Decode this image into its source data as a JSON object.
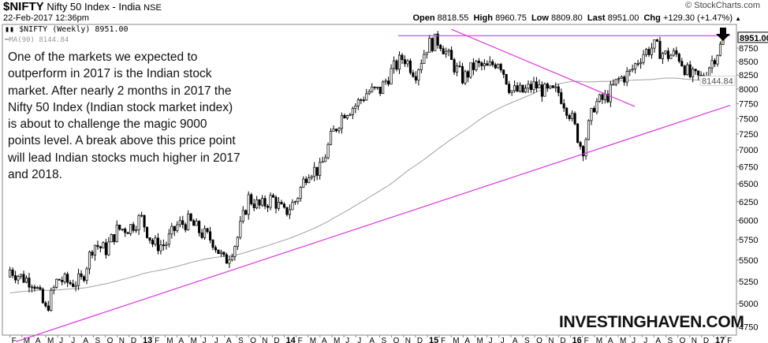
{
  "header": {
    "symbol": "$NIFTY",
    "name": "Nifty 50 Index - India",
    "exchange": "NSE",
    "datetime": "22-Feb-2017 12:36pm",
    "copyright": "© StockCharts.com",
    "open_label": "Open",
    "open": "8818.55",
    "high_label": "High",
    "high": "8960.75",
    "low_label": "Low",
    "low": "8809.80",
    "last_label": "Last",
    "last": "8951.00",
    "chg_label": "Chg",
    "chg": "+129.30 (+1.47%)"
  },
  "legend": {
    "series": "$NIFTY (Weekly) 8951.00",
    "ma": "MA(90) 8144.84"
  },
  "annotation": "One of the markets we expected to outperform in 2017 is the Indian stock market. After nearly 2 months in 2017 the Nifty 50 Index (Indian stock market index) is about to challenge the magic 9000 points level. A break above this price point will lead Indian stocks much higher in 2017 and 2018.",
  "watermark": "INVESTINGHAVEN.COM",
  "colors": {
    "trendline": "#e033e0",
    "ma": "#a0a0a0",
    "candle": "#000000",
    "last_candle": "#f5f0a0"
  },
  "chart_data": {
    "type": "candlestick",
    "title": "$NIFTY Nifty 50 Index - India NSE (Weekly)",
    "scale": "log",
    "ylim": [
      4650,
      9150
    ],
    "y_ticks": [
      4750,
      5000,
      5250,
      5500,
      5750,
      6000,
      6250,
      6500,
      6750,
      7000,
      7250,
      7500,
      7750,
      8000,
      8250,
      8500,
      8750
    ],
    "last_price_label": "8951.00",
    "ma_label": "8144.84",
    "x_labels": [
      "F",
      "M",
      "A",
      "M",
      "J",
      "J",
      "A",
      "S",
      "O",
      "N",
      "D",
      "13",
      "F",
      "M",
      "A",
      "M",
      "J",
      "J",
      "A",
      "S",
      "O",
      "N",
      "D",
      "14",
      "F",
      "M",
      "A",
      "M",
      "J",
      "J",
      "A",
      "S",
      "O",
      "N",
      "D",
      "15",
      "F",
      "M",
      "A",
      "M",
      "J",
      "J",
      "A",
      "S",
      "O",
      "N",
      "D",
      "16",
      "F",
      "M",
      "A",
      "M",
      "J",
      "J",
      "A",
      "S",
      "O",
      "N",
      "D",
      "17",
      "F"
    ],
    "monthly_close_approx": [
      5385,
      5295,
      5248,
      4924,
      5279,
      5229,
      5259,
      5703,
      5620,
      5880,
      5905,
      6035,
      5693,
      5683,
      5930,
      5986,
      5842,
      5742,
      5471,
      5735,
      6299,
      6176,
      6304,
      6090,
      6277,
      6704,
      6696,
      7230,
      7611,
      7721,
      7954,
      7965,
      8322,
      8588,
      8283,
      8809,
      8902,
      8491,
      8182,
      8434,
      8369,
      8533,
      7971,
      7949,
      8066,
      7935,
      7946,
      7564,
      6987,
      7738,
      7850,
      8160,
      8288,
      8639,
      8786,
      8611,
      8626,
      8224,
      8186,
      8561,
      8951
    ],
    "trendlines": [
      {
        "name": "resistance",
        "from": [
          "2015-03",
          8990
        ],
        "to": [
          "2017-02",
          8990
        ]
      },
      {
        "name": "falling",
        "from": [
          "2015-03",
          9119
        ],
        "to": [
          "2016-06",
          7700
        ]
      },
      {
        "name": "rising",
        "from": [
          "2012-01",
          4600
        ],
        "to": [
          "2017-02",
          7720
        ]
      }
    ]
  }
}
